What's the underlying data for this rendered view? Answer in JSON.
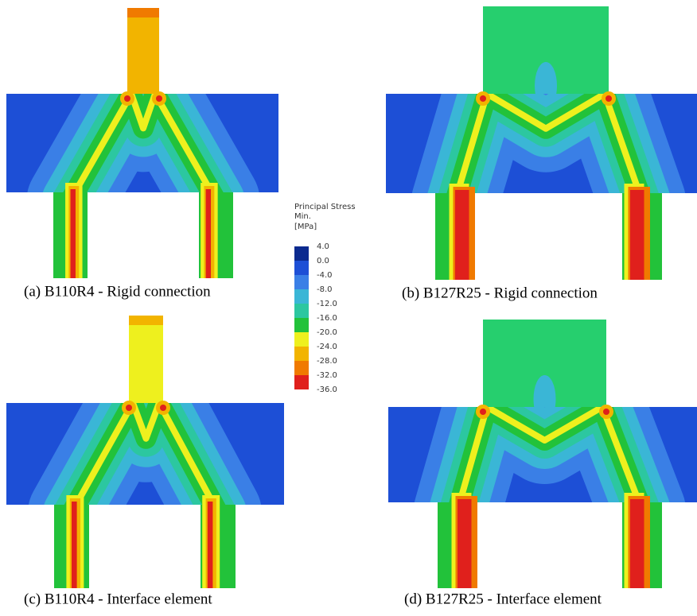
{
  "legend": {
    "title": [
      "Principal Stress",
      "Min.",
      "[MPa]"
    ],
    "labels": [
      "4.0",
      "0.0",
      "-4.0",
      "-8.0",
      "-12.0",
      "-16.0",
      "-20.0",
      "-24.0",
      "-28.0",
      "-32.0",
      "-36.0"
    ],
    "colors": [
      "#0b2a8f",
      "#1d4fd6",
      "#3a7fe6",
      "#3ab6d6",
      "#2cc7a0",
      "#22c23a",
      "#eef01e",
      "#f2b400",
      "#f07a00",
      "#e0201c"
    ]
  },
  "panels": [
    {
      "caption": "(a) B110R4 - Rigid connection"
    },
    {
      "caption": "(b) B127R25 - Rigid connection"
    },
    {
      "caption": "(c) B110R4 - Interface element"
    },
    {
      "caption": "(d) B127R25 - Interface element"
    }
  ]
}
